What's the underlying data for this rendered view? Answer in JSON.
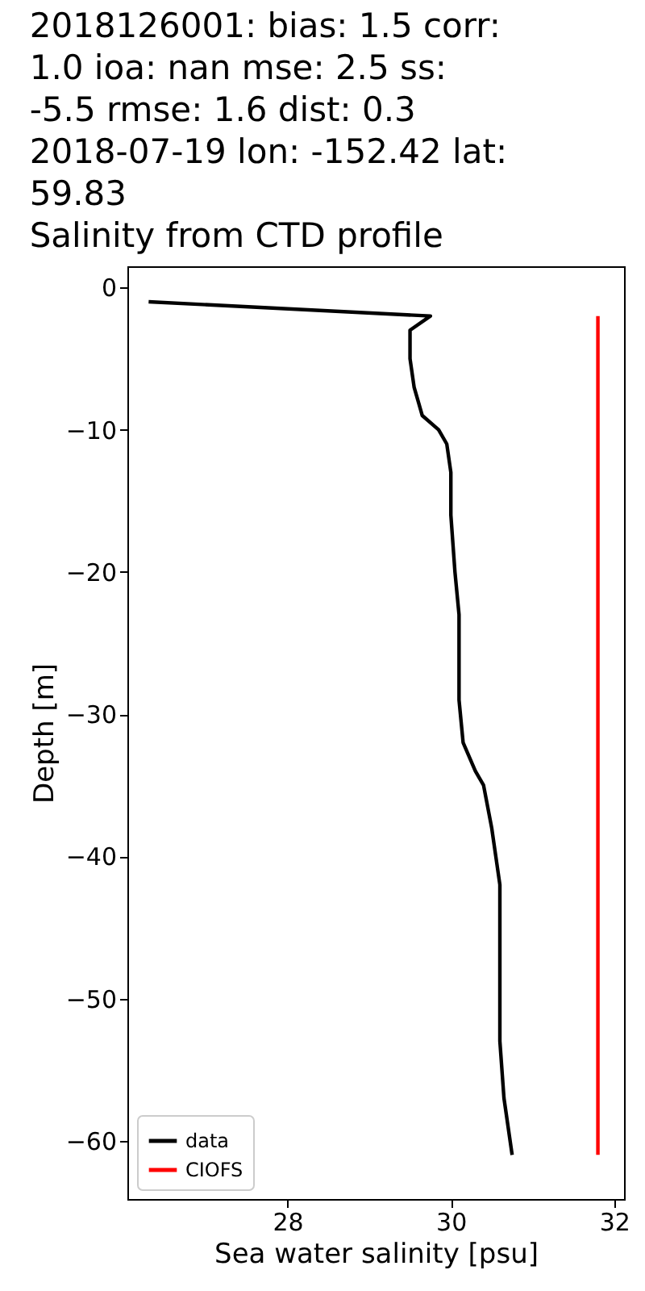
{
  "chart_data": {
    "type": "line",
    "title": "2018126001: bias: 1.5  corr: 1.0  ioa: nan  mse: 2.5  ss: -5.5  rmse: 1.6  dist: 0.3\n2018-07-19 lon: -152.42 lat: 59.83\nSalinity from CTD profile",
    "xlabel": "Sea water salinity [psu]",
    "ylabel": "Depth [m]",
    "series": [
      {
        "name": "data",
        "color": "#000000",
        "x": [
          26.3,
          29.75,
          29.5,
          29.5,
          29.55,
          29.6,
          29.65,
          29.85,
          29.95,
          30.0,
          30.0,
          30.05,
          30.1,
          30.1,
          30.1,
          30.15,
          30.3,
          30.4,
          30.5,
          30.55,
          30.6,
          30.6,
          30.6,
          30.6,
          30.65,
          30.7,
          30.75
        ],
        "values": [
          -1,
          -2,
          -3,
          -5,
          -7,
          -8,
          -9,
          -10,
          -11,
          -13,
          -16,
          -20,
          -23,
          -25,
          -29,
          -32,
          -34,
          -35,
          -38,
          -40,
          -42,
          -45,
          -50,
          -53,
          -57,
          -59,
          -61
        ]
      },
      {
        "name": "CIOFS",
        "color": "#ff0000",
        "x": [
          31.8,
          31.8
        ],
        "values": [
          -2,
          -61
        ]
      }
    ],
    "xlim": [
      26.04,
      32.12
    ],
    "xticks": [
      28,
      30,
      32
    ],
    "ylim": [
      -64.1,
      1.5
    ],
    "yticks": [
      0,
      -10,
      -20,
      -30,
      -40,
      -50,
      -60
    ],
    "grid": false,
    "legend": "bottom left",
    "marker": "none",
    "line_style": "solid"
  }
}
